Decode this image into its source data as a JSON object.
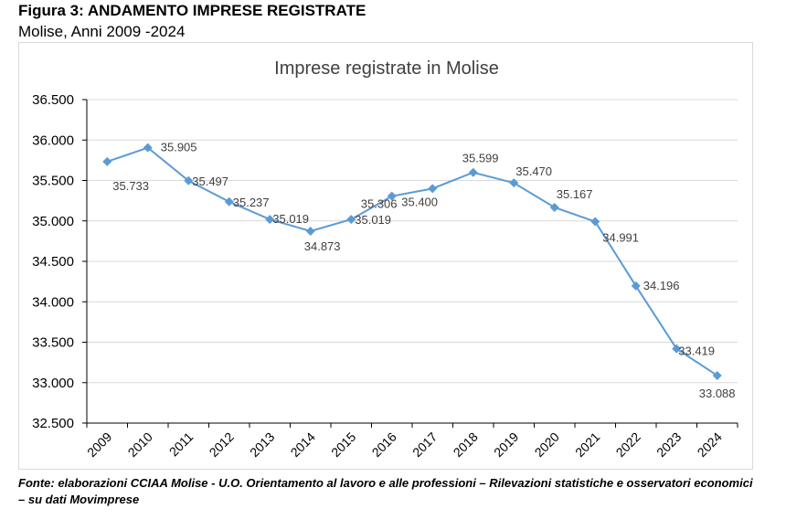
{
  "figure": {
    "title": "Figura 3: ANDAMENTO IMPRESE REGISTRATE",
    "subtitle": "Molise, Anni 2009 -2024"
  },
  "source": "Fonte: elaborazioni CCIAA Molise - U.O. Orientamento al lavoro e alle professioni – Rilevazioni statistiche e osservatori economici – su dati Movimprese",
  "colors": {
    "series": "#5b9bd5",
    "grid": "#d9d9d9",
    "axis": "#000000",
    "title": "#404040"
  },
  "chart_data": {
    "type": "line",
    "title": "Imprese registrate in Molise",
    "xlabel": "",
    "ylabel": "",
    "categories": [
      "2009",
      "2010",
      "2011",
      "2012",
      "2013",
      "2014",
      "2015",
      "2016",
      "2017",
      "2018",
      "2019",
      "2020",
      "2021",
      "2022",
      "2023",
      "2024"
    ],
    "series": [
      {
        "values": [
          35733,
          35905,
          35497,
          35237,
          35019,
          34873,
          35019,
          35306,
          35400,
          35599,
          35470,
          35167,
          34991,
          34196,
          33419,
          33088
        ]
      }
    ],
    "data_labels": [
      "35.733",
      "35.905",
      "35.497",
      "35.237",
      "35.019",
      "34.873",
      "35.019",
      "35.306",
      "35.400",
      "35.599",
      "35.470",
      "35.167",
      "34.991",
      "34.196",
      "33.419",
      "33.088"
    ],
    "ylim": [
      32500,
      36500
    ],
    "yticks": [
      32500,
      33000,
      33500,
      34000,
      34500,
      35000,
      35500,
      36000,
      36500
    ],
    "ytick_labels": [
      "32.500",
      "33.000",
      "33.500",
      "34.000",
      "34.500",
      "35.000",
      "35.500",
      "36.000",
      "36.500"
    ],
    "grid": true,
    "legend": "none",
    "marker": "diamond"
  }
}
